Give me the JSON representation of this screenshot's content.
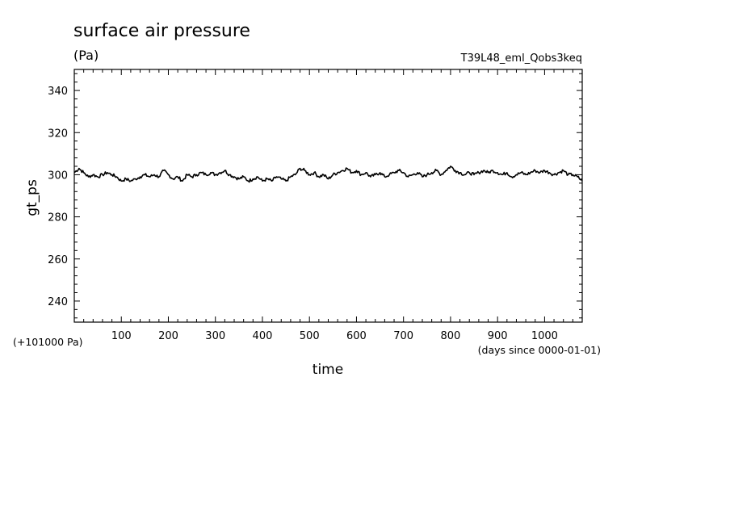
{
  "chart_data": {
    "type": "line",
    "title": "surface air pressure",
    "units": "(Pa)",
    "run_label": "T39L48_eml_Qobs3keq",
    "xlabel": "time",
    "x_units_note": "(days since 0000-01-01)",
    "ylabel": "gt_ps",
    "y_offset_note": "(+101000 Pa)",
    "xlim": [
      0,
      1080
    ],
    "ylim": [
      230,
      350
    ],
    "x_ticks": [
      100,
      200,
      300,
      400,
      500,
      600,
      700,
      800,
      900,
      1000
    ],
    "y_ticks": [
      240,
      260,
      280,
      300,
      320,
      340
    ],
    "grid": false,
    "series": [
      {
        "color": "#000000",
        "x": [
          0,
          10,
          20,
          30,
          40,
          50,
          60,
          70,
          80,
          90,
          100,
          110,
          120,
          130,
          140,
          150,
          160,
          170,
          180,
          190,
          200,
          210,
          220,
          230,
          240,
          250,
          260,
          270,
          280,
          290,
          300,
          310,
          320,
          330,
          340,
          350,
          360,
          370,
          380,
          390,
          400,
          410,
          420,
          430,
          440,
          450,
          460,
          470,
          480,
          490,
          500,
          510,
          520,
          530,
          540,
          550,
          560,
          570,
          580,
          590,
          600,
          610,
          620,
          630,
          640,
          650,
          660,
          670,
          680,
          690,
          700,
          710,
          720,
          730,
          740,
          750,
          760,
          770,
          780,
          790,
          800,
          810,
          820,
          830,
          840,
          850,
          860,
          870,
          880,
          890,
          900,
          910,
          920,
          930,
          940,
          950,
          960,
          970,
          980,
          990,
          1000,
          1010,
          1020,
          1030,
          1040,
          1050,
          1060,
          1070,
          1080
        ],
        "y": [
          301,
          303,
          301,
          299,
          300,
          299,
          300,
          301,
          300,
          299,
          297,
          298,
          297,
          298,
          299,
          300,
          299,
          300,
          299,
          302,
          300,
          298,
          299,
          297,
          300,
          299,
          300,
          301,
          300,
          301,
          300,
          301,
          302,
          300,
          299,
          298,
          299,
          297,
          298,
          299,
          297,
          298,
          297,
          299,
          298,
          297,
          299,
          300,
          303,
          302,
          300,
          301,
          299,
          300,
          298,
          300,
          301,
          302,
          303,
          301,
          302,
          300,
          301,
          299,
          300,
          301,
          299,
          300,
          301,
          302,
          301,
          299,
          300,
          301,
          299,
          300,
          301,
          302,
          300,
          302,
          304,
          302,
          301,
          300,
          301,
          300,
          301,
          302,
          301,
          302,
          301,
          300,
          301,
          299,
          300,
          301,
          300,
          301,
          302,
          301,
          302,
          301,
          300,
          301,
          302,
          300,
          300,
          299,
          297
        ]
      }
    ]
  }
}
